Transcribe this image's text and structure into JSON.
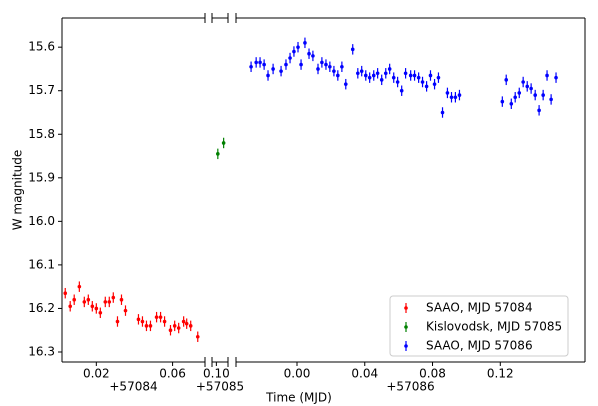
{
  "chart_data": {
    "type": "errorbar",
    "xlabel": "Time (MJD)",
    "ylabel": "W magnitude",
    "ylim": [
      15.533,
      16.323
    ],
    "y_inverted": true,
    "yticks": [
      15.6,
      15.7,
      15.8,
      15.9,
      {
        "value": 16.0,
        "label": "16.0"
      },
      16.1,
      16.2,
      16.3
    ],
    "legend": "lower right",
    "panels": [
      {
        "xlim": [
          0.002,
          0.077
        ],
        "xticks": [
          0.02,
          0.06
        ],
        "offset_label": "+57084",
        "series": [
          {
            "name": "SAAO, MJD 57084",
            "color": "#ff0000",
            "error": 0.012,
            "x": [
              0.0037,
              0.0063,
              0.0084,
              0.0111,
              0.0137,
              0.0158,
              0.0179,
              0.02,
              0.0221,
              0.0247,
              0.0268,
              0.0289,
              0.0311,
              0.0332,
              0.0353,
              0.0421,
              0.0442,
              0.0463,
              0.0484,
              0.0516,
              0.0537,
              0.0558,
              0.0589,
              0.0611,
              0.0632,
              0.0658,
              0.0674,
              0.0695,
              0.0732
            ],
            "values": [
              16.165,
              16.195,
              16.18,
              16.15,
              16.185,
              16.18,
              16.195,
              16.2,
              16.21,
              16.185,
              16.185,
              16.175,
              16.23,
              16.18,
              16.205,
              16.225,
              16.23,
              16.24,
              16.24,
              16.22,
              16.22,
              16.23,
              16.25,
              16.24,
              16.245,
              16.23,
              16.235,
              16.24,
              16.265
            ]
          }
        ]
      },
      {
        "xlim": [
          0.097,
          0.108
        ],
        "xticks": [
          {
            "value": 0.1,
            "label": "0.10"
          }
        ],
        "offset_label": "+57085",
        "series": [
          {
            "name": "Kislovodsk, MJD 57085",
            "color": "#008000",
            "error": 0.012,
            "x": [
              0.101,
              0.105
            ],
            "values": [
              15.845,
              15.82
            ]
          }
        ]
      },
      {
        "xlim": [
          -0.036,
          0.17
        ],
        "xticks": [
          {
            "value": 0,
            "label": "0.00"
          },
          0.04,
          0.08,
          0.12
        ],
        "offset_label": "+57086",
        "series": [
          {
            "name": "SAAO, MJD 57086",
            "color": "#0000ff",
            "error": 0.012,
            "x": [
              -0.0271,
              -0.0241,
              -0.0218,
              -0.0194,
              -0.0171,
              -0.0141,
              -0.0094,
              -0.0065,
              -0.0041,
              -0.0018,
              0.0006,
              0.0024,
              0.0047,
              0.0071,
              0.0094,
              0.0124,
              0.0147,
              0.0171,
              0.0194,
              0.0218,
              0.0241,
              0.0265,
              0.0288,
              0.0329,
              0.0359,
              0.0382,
              0.0406,
              0.0429,
              0.0453,
              0.0476,
              0.05,
              0.0524,
              0.0547,
              0.0571,
              0.0594,
              0.0618,
              0.0641,
              0.0671,
              0.0694,
              0.0718,
              0.0741,
              0.0765,
              0.0788,
              0.0812,
              0.0835,
              0.0859,
              0.0888,
              0.0912,
              0.0935,
              0.0959,
              0.1212,
              0.1235,
              0.1265,
              0.1288,
              0.1312,
              0.1335,
              0.1359,
              0.1382,
              0.1406,
              0.1429,
              0.1453,
              0.1476,
              0.15,
              0.1529
            ],
            "values": [
              15.645,
              15.635,
              15.635,
              15.64,
              15.665,
              15.65,
              15.655,
              15.64,
              15.625,
              15.61,
              15.6,
              15.64,
              15.59,
              15.615,
              15.62,
              15.65,
              15.635,
              15.64,
              15.645,
              15.655,
              15.665,
              15.645,
              15.685,
              15.605,
              15.66,
              15.655,
              15.665,
              15.67,
              15.665,
              15.66,
              15.675,
              15.66,
              15.65,
              15.67,
              15.68,
              15.7,
              15.66,
              15.665,
              15.665,
              15.67,
              15.68,
              15.69,
              15.665,
              15.685,
              15.67,
              15.75,
              15.705,
              15.715,
              15.715,
              15.71,
              15.725,
              15.675,
              15.73,
              15.715,
              15.705,
              15.68,
              15.69,
              15.695,
              15.71,
              15.745,
              15.71,
              15.665,
              15.72,
              15.67
            ]
          }
        ]
      }
    ]
  }
}
